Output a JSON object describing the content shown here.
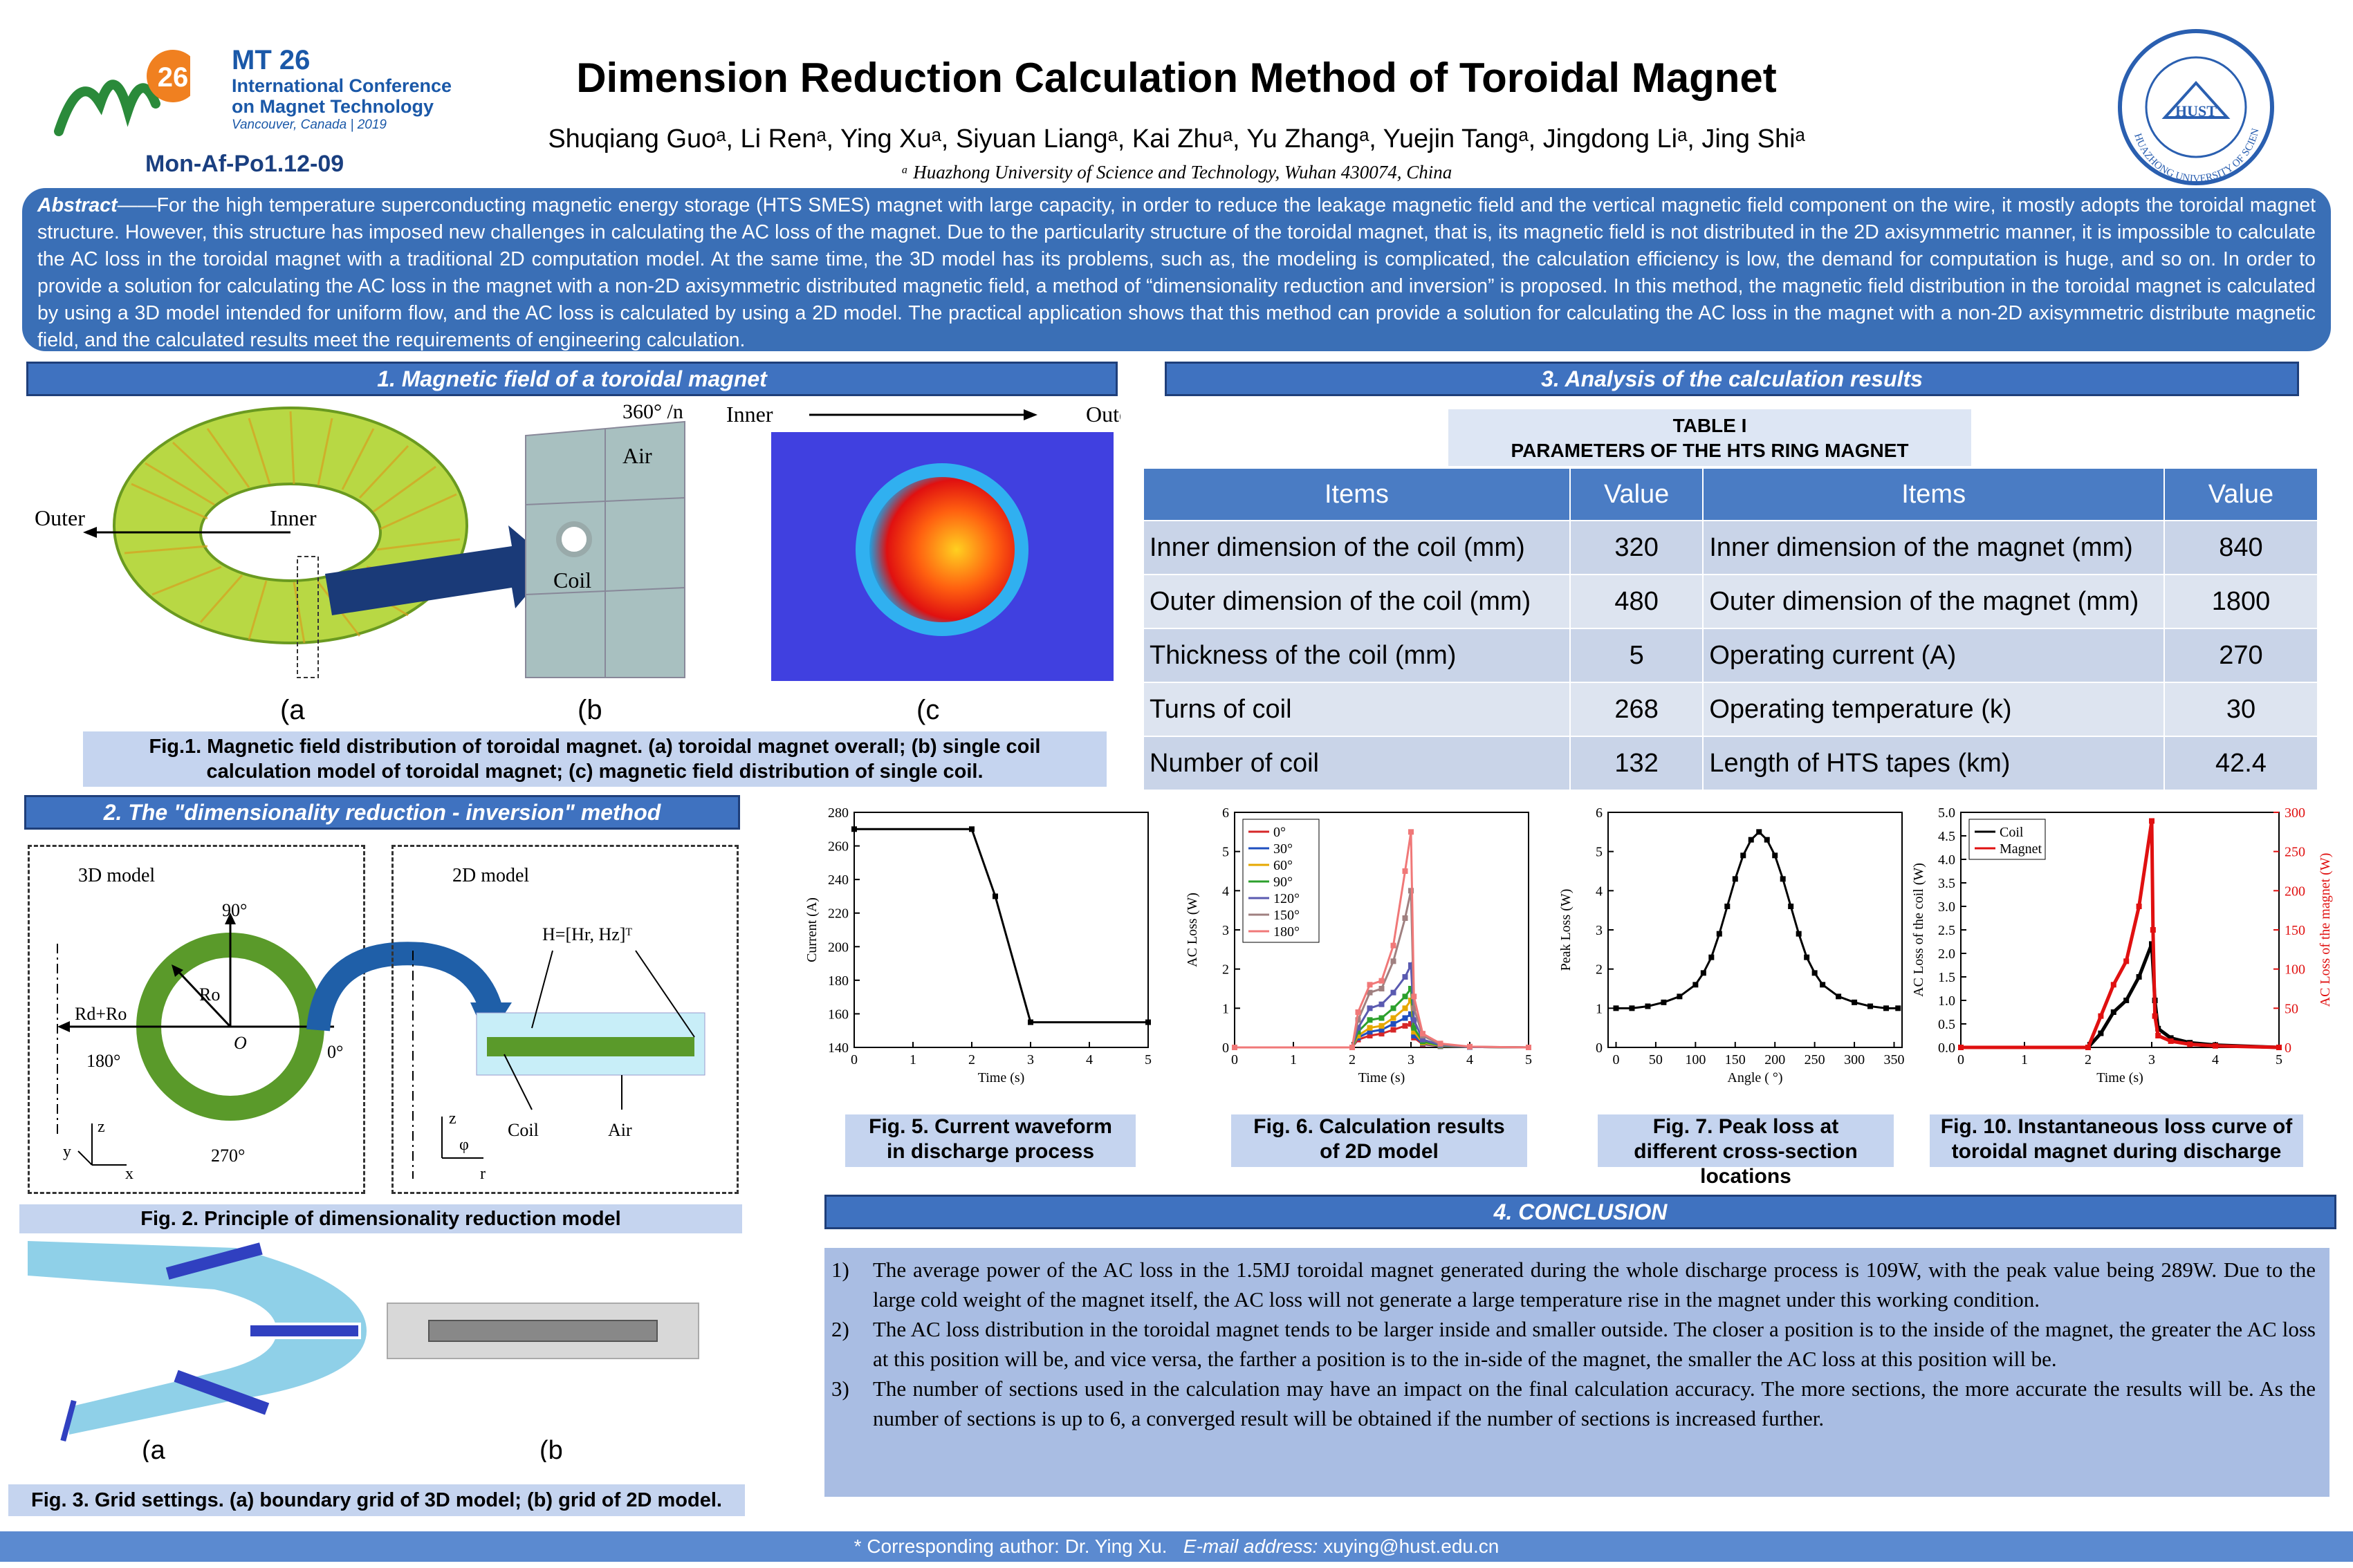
{
  "header": {
    "title": "Dimension Reduction Calculation Method of Toroidal Magnet",
    "authors": "Shuqiang Guoᵃ, Li Renᵃ, Ying Xuᵃ, Siyuan Liangᵃ, Kai Zhuᵃ, Yu Zhangᵃ, Yuejin Tangᵃ, Jingdong Liᵃ, Jing Shiᵃ",
    "affiliation": "ᵃ Huazhong University of Science and Technology, Wuhan 430074, China",
    "logo_mt": "MT",
    "logo_num": "26",
    "conf_line1": "International Conference",
    "conf_line2": "on Magnet Technology",
    "conf_line3": "Vancouver, Canada | 2019",
    "poster_id": "Mon-Af-Po1.12-09",
    "seal_text": "HUAZHONG UNIVERSITY OF SCIENCE AND TECHNOLOGY",
    "seal_center": "HUST"
  },
  "abstract": {
    "label": "Abstract",
    "text": "——For the high temperature superconducting magnetic energy storage (HTS SMES) magnet with large capacity, in order to reduce the leakage magnetic field and the vertical magnetic field component on the wire, it mostly adopts the toroidal magnet structure. However, this structure has imposed new challenges in calculating the AC loss of the magnet. Due to the particularity structure of the toroidal magnet, that is, its magnetic field is not distributed in the 2D axisymmetric manner, it is impossible to calculate the AC loss in the toroidal magnet with a traditional 2D computation model. At the same time, the 3D model has its problems, such as, the modeling is complicated, the calculation efficiency is low, the demand for computation is huge, and so on. In order to provide a solution for calculating the AC loss in the magnet with a non-2D axisymmetric distributed magnetic field, a method of “dimensionality reduction and inversion” is proposed. In this method, the magnetic field distribution in the toroidal magnet is calculated by using a 3D model intended for uniform flow, and the AC loss is calculated by using a 2D model. The practical application shows that this method can provide a solution for calculating the AC loss in the magnet with a non-2D axisymmetric distribute magnetic field, and the calculated results meet the requirements of engineering calculation."
  },
  "section1": {
    "heading": "1. Magnetic field of a toroidal magnet",
    "fig_labels": {
      "outer": "Outer",
      "inner": "Inner",
      "angle": "360° /n",
      "air": "Air",
      "coil": "Coil",
      "inner2": "Inner",
      "outer2": "Outer",
      "a": "(a",
      "b": "(b",
      "c": "(c"
    },
    "caption": "Fig.1. Magnetic field distribution of toroidal magnet. (a) toroidal magnet overall; (b) single coil calculation model of toroidal magnet; (c) magnetic field distribution of single coil."
  },
  "section2": {
    "heading": "2. The \"dimensionality reduction - inversion\" method",
    "model3d": "3D model",
    "model2d": "2D model",
    "labels3d": {
      "a90": "90°",
      "a0": "0°",
      "a180": "180°",
      "a270": "270°",
      "ro": "Ro",
      "o": "O",
      "rdro": "Rd+Ro",
      "z": "z",
      "y": "y",
      "x": "x"
    },
    "labels2d": {
      "h": "H=[Hr, Hz]ᵀ",
      "coil": "Coil",
      "air": "Air",
      "z": "z",
      "phi": "φ",
      "r": "r"
    },
    "caption2": "Fig. 2. Principle of dimensionality reduction model",
    "fig3_a": "(a",
    "fig3_b": "(b",
    "caption3": "Fig. 3. Grid settings. (a) boundary grid of 3D model; (b) grid of 2D model."
  },
  "section3": {
    "heading": "3. Analysis of the calculation results",
    "table_title1": "TABLE I",
    "table_title2": "PARAMETERS OF THE HTS RING MAGNET",
    "columns": [
      "Items",
      "Value",
      "Items",
      "Value"
    ],
    "rows": [
      [
        "Inner dimension of the coil (mm)",
        "320",
        "Inner dimension of the magnet (mm)",
        "840"
      ],
      [
        "Outer dimension of the coil (mm)",
        "480",
        "Outer dimension of the magnet (mm)",
        "1800"
      ],
      [
        "Thickness of the coil (mm)",
        "5",
        "Operating current (A)",
        "270"
      ],
      [
        "Turns of coil",
        "268",
        "Operating temperature (k)",
        "30"
      ],
      [
        "Number of coil",
        "132",
        "Length of HTS tapes (km)",
        "42.4"
      ]
    ],
    "fig5_caption": "Fig. 5. Current waveform in discharge process",
    "fig6_caption": "Fig. 6. Calculation results of 2D model",
    "fig7_caption": "Fig. 7. Peak loss at different cross-section locations",
    "fig10_caption": "Fig. 10. Instantaneous loss curve of toroidal magnet during discharge"
  },
  "chart_data": [
    {
      "type": "line",
      "id": "fig5",
      "xlabel": "Time (s)",
      "ylabel": "Current (A)",
      "xlim": [
        0,
        5
      ],
      "ylim": [
        140,
        280
      ],
      "xticks": [
        0,
        1,
        2,
        3,
        4,
        5
      ],
      "yticks": [
        140,
        160,
        180,
        200,
        220,
        240,
        260,
        280
      ],
      "series": [
        {
          "x": [
            0,
            2,
            2.4,
            3,
            5
          ],
          "y": [
            270,
            270,
            230,
            155,
            155
          ]
        }
      ]
    },
    {
      "type": "line",
      "id": "fig6",
      "xlabel": "Time (s)",
      "ylabel": "AC Loss (W)",
      "xlim": [
        0,
        5
      ],
      "ylim": [
        0,
        6
      ],
      "xticks": [
        0,
        1,
        2,
        3,
        4,
        5
      ],
      "yticks": [
        0,
        1,
        2,
        3,
        4,
        5,
        6
      ],
      "legend": "top-left",
      "x": [
        0,
        2,
        2.1,
        2.3,
        2.5,
        2.7,
        2.9,
        3.0,
        3.05,
        3.2,
        3.5,
        4,
        5
      ],
      "series": [
        {
          "name": "0°",
          "color": "#d62728",
          "values": [
            0,
            0,
            0.2,
            0.3,
            0.35,
            0.45,
            0.55,
            0.6,
            0.25,
            0.08,
            0.03,
            0.01,
            0
          ]
        },
        {
          "name": "30°",
          "color": "#1f4fbf",
          "values": [
            0,
            0,
            0.25,
            0.4,
            0.45,
            0.6,
            0.75,
            0.85,
            0.3,
            0.1,
            0.03,
            0.01,
            0
          ]
        },
        {
          "name": "60°",
          "color": "#e6a800",
          "values": [
            0,
            0,
            0.3,
            0.5,
            0.55,
            0.75,
            1.0,
            1.2,
            0.4,
            0.12,
            0.04,
            0.01,
            0
          ]
        },
        {
          "name": "90°",
          "color": "#2ca02c",
          "values": [
            0,
            0,
            0.4,
            0.7,
            0.75,
            1.0,
            1.3,
            1.5,
            0.5,
            0.15,
            0.05,
            0.01,
            0
          ]
        },
        {
          "name": "120°",
          "color": "#5a5ab0",
          "values": [
            0,
            0,
            0.5,
            1.0,
            1.1,
            1.4,
            1.8,
            2.1,
            0.7,
            0.2,
            0.06,
            0.01,
            0
          ]
        },
        {
          "name": "150°",
          "color": "#a08080",
          "values": [
            0,
            0,
            0.7,
            1.4,
            1.5,
            2.2,
            3.3,
            4.0,
            1.0,
            0.3,
            0.08,
            0.02,
            0
          ]
        },
        {
          "name": "180°",
          "color": "#f07878",
          "values": [
            0,
            0,
            0.9,
            1.6,
            1.7,
            2.6,
            4.5,
            5.5,
            1.3,
            0.35,
            0.1,
            0.02,
            0
          ]
        }
      ]
    },
    {
      "type": "line",
      "id": "fig7",
      "xlabel": "Angle ( °)",
      "ylabel": "Peak Loss (W)",
      "xlim": [
        -10,
        360
      ],
      "ylim": [
        0,
        6
      ],
      "xticks": [
        0,
        50,
        100,
        150,
        200,
        250,
        300,
        350
      ],
      "yticks": [
        0,
        1,
        2,
        3,
        4,
        5,
        6
      ],
      "series": [
        {
          "x": [
            0,
            20,
            40,
            60,
            80,
            100,
            110,
            120,
            130,
            140,
            150,
            160,
            170,
            180,
            190,
            200,
            210,
            220,
            230,
            240,
            250,
            260,
            280,
            300,
            320,
            340,
            355
          ],
          "y": [
            1.0,
            1.0,
            1.05,
            1.15,
            1.3,
            1.6,
            1.9,
            2.3,
            2.9,
            3.6,
            4.3,
            4.9,
            5.3,
            5.5,
            5.3,
            4.9,
            4.3,
            3.6,
            2.9,
            2.3,
            1.9,
            1.6,
            1.3,
            1.15,
            1.05,
            1.0,
            1.0
          ]
        }
      ]
    },
    {
      "type": "line",
      "id": "fig10",
      "xlabel": "Time (s)",
      "ylabel": "AC Loss of the coil (W)",
      "ylabel_right": "AC Loss of the magnet (W)",
      "xlim": [
        0,
        5
      ],
      "ylim": [
        0,
        5
      ],
      "ylim_right": [
        0,
        300
      ],
      "xticks": [
        0,
        1,
        2,
        3,
        4,
        5
      ],
      "yticks": [
        0.0,
        0.5,
        1.0,
        1.5,
        2.0,
        2.5,
        3.0,
        3.5,
        4.0,
        4.5,
        5.0
      ],
      "yticks_right": [
        0,
        50,
        100,
        150,
        200,
        250,
        300
      ],
      "legend": "top-left",
      "series": [
        {
          "name": "Coil",
          "color": "#000000",
          "axis": "left",
          "x": [
            0,
            2.0,
            2.2,
            2.4,
            2.6,
            2.8,
            3.0,
            3.05,
            3.1,
            3.3,
            3.6,
            4,
            5
          ],
          "y": [
            0,
            0,
            0.3,
            0.75,
            1.0,
            1.5,
            2.2,
            1.0,
            0.4,
            0.2,
            0.1,
            0.05,
            0
          ]
        },
        {
          "name": "Magnet",
          "color": "#e01010",
          "axis": "right",
          "x": [
            0,
            2.0,
            2.2,
            2.4,
            2.6,
            2.8,
            3.0,
            3.02,
            3.05,
            3.1,
            3.3,
            3.6,
            4,
            5
          ],
          "y": [
            0,
            0,
            40,
            80,
            110,
            180,
            289,
            150,
            40,
            15,
            8,
            4,
            2,
            0
          ]
        }
      ]
    }
  ],
  "conclusion": {
    "heading": "4. CONCLUSION",
    "items": [
      {
        "num": "1)",
        "text": "The average power of the AC loss in the 1.5MJ toroidal magnet generated during the whole discharge process is 109W, with the peak value being 289W. Due to the large cold weight of the magnet itself, the AC loss will not generate a large temperature rise in the magnet under this working condition."
      },
      {
        "num": "2)",
        "text": "The AC loss distribution in the toroidal magnet tends to be larger inside and smaller outside. The closer a position is to the inside of the magnet, the greater the AC loss at this position will be, and vice versa, the farther a position is to the in-side of the magnet, the smaller the AC loss at this position will be."
      },
      {
        "num": "3)",
        "text": "The number of sections used in the calculation may have an impact on the final calculation accuracy. The more sections, the more accurate the results will be. As the number of sections is up to 6, a converged result will be obtained if the number of sections is increased further."
      }
    ]
  },
  "footer": {
    "prefix": "* Corresponding author: Dr. Ying Xu.",
    "email_label": "E-mail address:",
    "email": "xuying@hust.edu.cn"
  },
  "colors": {
    "accent": "#3f72c0",
    "abstract_bg": "#3a6fb6",
    "caption_bg": "#c5d4ef",
    "conclusion_bg": "#a9bde3",
    "coil_green": "#5a9a2a"
  }
}
